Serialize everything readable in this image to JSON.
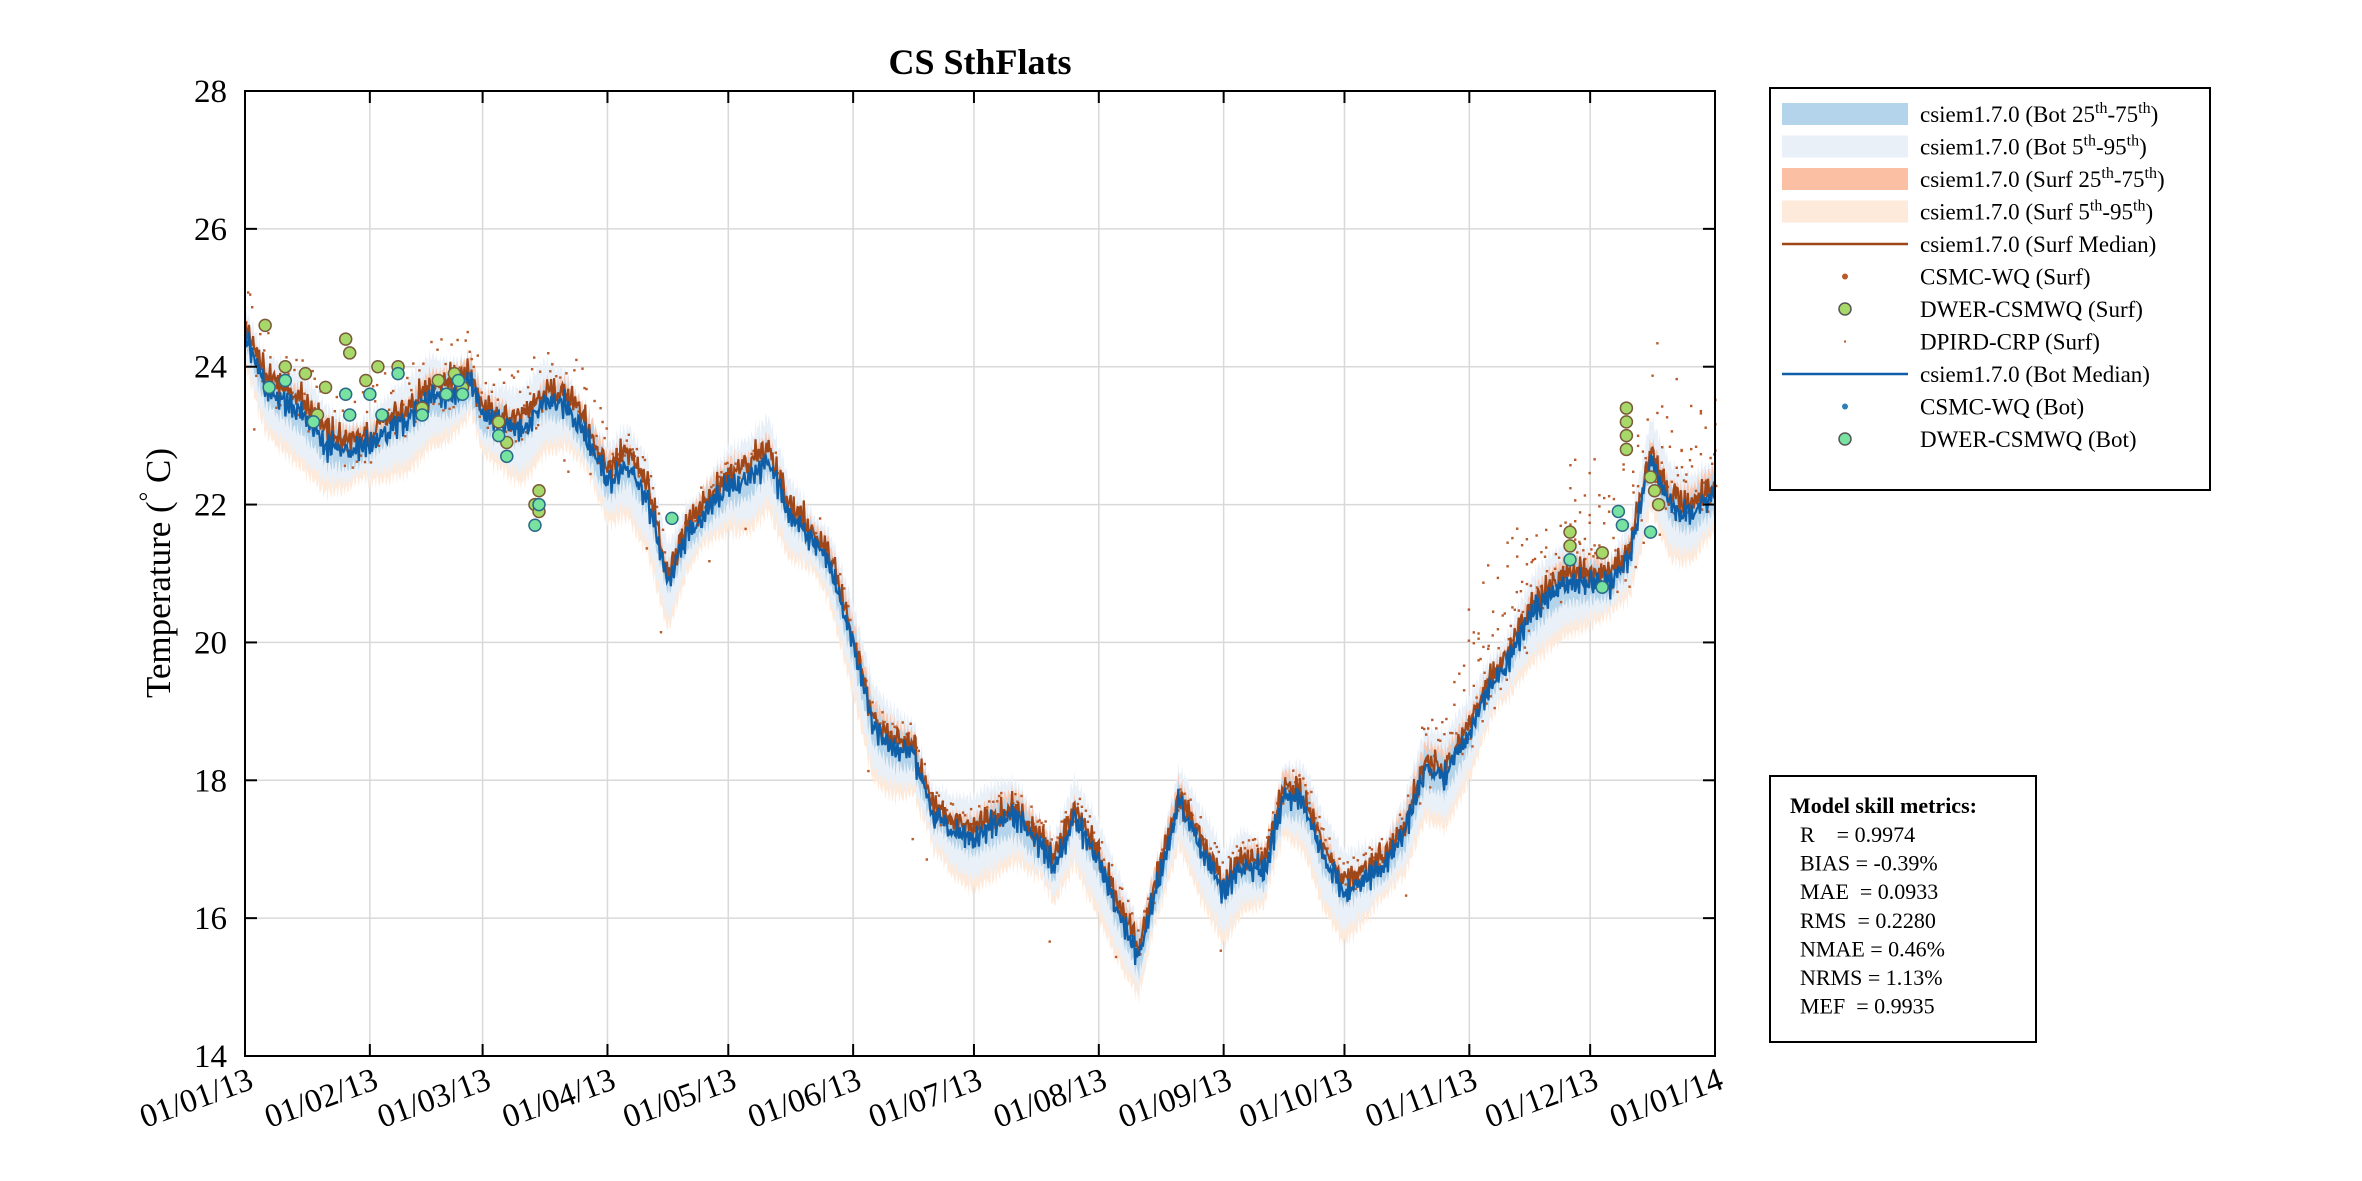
{
  "chart_data": {
    "type": "line",
    "title": "CS SthFlats",
    "ylabel": "Temperature (",
    "ylabel_degree": "°",
    "ylabel_unit": " C)",
    "xlabel": "",
    "ylim": [
      14,
      28
    ],
    "yticks": [
      14,
      16,
      18,
      20,
      22,
      24,
      26,
      28
    ],
    "xticks": [
      "01/01/13",
      "01/02/13",
      "01/03/13",
      "01/04/13",
      "01/05/13",
      "01/06/13",
      "01/07/13",
      "01/08/13",
      "01/09/13",
      "01/10/13",
      "01/11/13",
      "01/12/13",
      "01/01/14"
    ],
    "xlim": [
      "01/01/13",
      "01/01/14"
    ],
    "grid": true,
    "legend_position": "outside-top-right",
    "colors": {
      "surf_median": "#a0471a",
      "surf_points": "#b85a2a",
      "bot_median": "#0f5ea8",
      "bot_25_75": "#b3d4ea",
      "bot_5_95": "#e9f0f8",
      "surf_25_75": "#fbbfa3",
      "surf_5_95": "#fdeadb",
      "dwer_surf_fill": "#a6d96a",
      "dwer_bot_fill": "#78e3a0",
      "csmc_bot": "#2c7fb8"
    },
    "legend": [
      {
        "kind": "band",
        "color": "#b3d4ea",
        "label": "csiem1.7.0 (Bot 25",
        "sup1": "th",
        "mid": "-75",
        "sup2": "th",
        "end": ")"
      },
      {
        "kind": "band",
        "color": "#e9f0f8",
        "label": "csiem1.7.0 (Bot 5",
        "sup1": "th",
        "mid": "-95",
        "sup2": "th",
        "end": ")"
      },
      {
        "kind": "band",
        "color": "#fbbfa3",
        "label": "csiem1.7.0 (Surf 25",
        "sup1": "th",
        "mid": "-75",
        "sup2": "th",
        "end": ")"
      },
      {
        "kind": "band",
        "color": "#fdeadb",
        "label": "csiem1.7.0 (Surf 5",
        "sup1": "th",
        "mid": "-95",
        "sup2": "th",
        "end": ")"
      },
      {
        "kind": "line",
        "color": "#a0471a",
        "label": "csiem1.7.0 (Surf Median)"
      },
      {
        "kind": "dot",
        "color": "#b85a2a",
        "label": "CSMC-WQ (Surf)"
      },
      {
        "kind": "circle",
        "color": "#a6d96a",
        "label": "DWER-CSMWQ (Surf)"
      },
      {
        "kind": "tiny",
        "color": "#b85a2a",
        "label": "DPIRD-CRP (Surf)"
      },
      {
        "kind": "line",
        "color": "#0f5ea8",
        "label": "csiem1.7.0 (Bot Median)"
      },
      {
        "kind": "dot",
        "color": "#2c7fb8",
        "label": "CSMC-WQ (Bot)"
      },
      {
        "kind": "circle",
        "color": "#78e3a0",
        "label": "DWER-CSMWQ (Bot)"
      }
    ],
    "median_series_x_days": [
      0,
      5,
      10,
      15,
      20,
      25,
      31,
      36,
      41,
      46,
      51,
      56,
      59,
      64,
      69,
      74,
      79,
      84,
      90,
      95,
      100,
      105,
      110,
      115,
      120,
      125,
      130,
      135,
      140,
      145,
      151,
      156,
      161,
      166,
      171,
      176,
      181,
      186,
      191,
      196,
      201,
      206,
      212,
      217,
      222,
      227,
      232,
      237,
      243,
      248,
      253,
      258,
      263,
      268,
      273,
      278,
      283,
      288,
      293,
      298,
      304,
      309,
      314,
      319,
      324,
      329,
      334,
      339,
      344,
      349,
      354,
      359,
      365
    ],
    "series": [
      {
        "name": "csiem1.7.0 (Surf Median)",
        "y": [
          24.6,
          23.9,
          23.7,
          23.5,
          23.1,
          22.9,
          23.0,
          23.3,
          23.4,
          23.7,
          23.8,
          23.9,
          23.4,
          23.3,
          23.3,
          23.6,
          23.7,
          23.3,
          22.5,
          22.8,
          22.3,
          21.0,
          21.7,
          22.1,
          22.4,
          22.6,
          22.8,
          22.0,
          21.7,
          21.3,
          20.1,
          18.9,
          18.6,
          18.5,
          17.6,
          17.4,
          17.3,
          17.5,
          17.6,
          17.3,
          16.9,
          17.6,
          16.9,
          16.2,
          15.6,
          16.7,
          17.8,
          17.2,
          16.5,
          16.9,
          16.8,
          17.9,
          17.8,
          17.0,
          16.5,
          16.7,
          16.9,
          17.4,
          18.3,
          18.2,
          18.8,
          19.5,
          19.9,
          20.5,
          20.8,
          21.0,
          21.0,
          21.0,
          21.4,
          22.8,
          22.1,
          22.0,
          22.3
        ]
      },
      {
        "name": "csiem1.7.0 (Bot Median)",
        "y": [
          24.5,
          23.7,
          23.5,
          23.3,
          22.9,
          22.8,
          22.9,
          23.1,
          23.3,
          23.6,
          23.6,
          23.8,
          23.3,
          23.2,
          23.1,
          23.5,
          23.5,
          23.1,
          22.4,
          22.6,
          22.1,
          20.9,
          21.6,
          22.0,
          22.3,
          22.4,
          22.7,
          21.9,
          21.6,
          21.2,
          20.0,
          18.8,
          18.5,
          18.4,
          17.5,
          17.3,
          17.2,
          17.4,
          17.5,
          17.2,
          16.8,
          17.5,
          16.8,
          16.1,
          15.5,
          16.6,
          17.7,
          17.1,
          16.4,
          16.8,
          16.7,
          17.8,
          17.7,
          16.9,
          16.4,
          16.6,
          16.8,
          17.3,
          18.2,
          18.1,
          18.7,
          19.4,
          19.8,
          20.4,
          20.7,
          20.9,
          20.9,
          20.9,
          21.3,
          22.7,
          22.0,
          21.9,
          22.2
        ]
      }
    ],
    "dwer_surf_points": [
      [
        5,
        24.6
      ],
      [
        10,
        24.0
      ],
      [
        15,
        23.9
      ],
      [
        18,
        23.3
      ],
      [
        20,
        23.7
      ],
      [
        25,
        24.4
      ],
      [
        26,
        24.2
      ],
      [
        30,
        23.8
      ],
      [
        33,
        24.0
      ],
      [
        38,
        24.0
      ],
      [
        44,
        23.4
      ],
      [
        48,
        23.8
      ],
      [
        52,
        23.9
      ],
      [
        54,
        23.7
      ],
      [
        63,
        23.2
      ],
      [
        65,
        22.9
      ],
      [
        72,
        22.0
      ],
      [
        73,
        22.2
      ],
      [
        73,
        21.9
      ],
      [
        329,
        21.6
      ],
      [
        329,
        21.4
      ],
      [
        337,
        21.3
      ],
      [
        343,
        23.4
      ],
      [
        343,
        23.2
      ],
      [
        343,
        23.0
      ],
      [
        343,
        22.8
      ],
      [
        349,
        22.4
      ],
      [
        350,
        22.2
      ],
      [
        351,
        22.0
      ]
    ],
    "dwer_bot_points": [
      [
        6,
        23.7
      ],
      [
        10,
        23.8
      ],
      [
        17,
        23.2
      ],
      [
        25,
        23.6
      ],
      [
        26,
        23.3
      ],
      [
        31,
        23.6
      ],
      [
        34,
        23.3
      ],
      [
        38,
        23.9
      ],
      [
        44,
        23.3
      ],
      [
        50,
        23.6
      ],
      [
        53,
        23.8
      ],
      [
        54,
        23.6
      ],
      [
        63,
        23.0
      ],
      [
        65,
        22.7
      ],
      [
        72,
        21.7
      ],
      [
        73,
        22.0
      ],
      [
        106,
        21.8
      ],
      [
        329,
        21.2
      ],
      [
        337,
        20.8
      ],
      [
        341,
        21.9
      ],
      [
        342,
        21.7
      ],
      [
        349,
        21.6
      ]
    ]
  },
  "metrics": {
    "title": "Model skill metrics:",
    "lines": [
      "R    = 0.9974",
      "BIAS = -0.39%",
      "MAE  = 0.0933",
      "RMS  = 0.2280",
      "NMAE = 0.46%",
      "NRMS = 1.13%",
      "MEF  = 0.9935"
    ]
  }
}
